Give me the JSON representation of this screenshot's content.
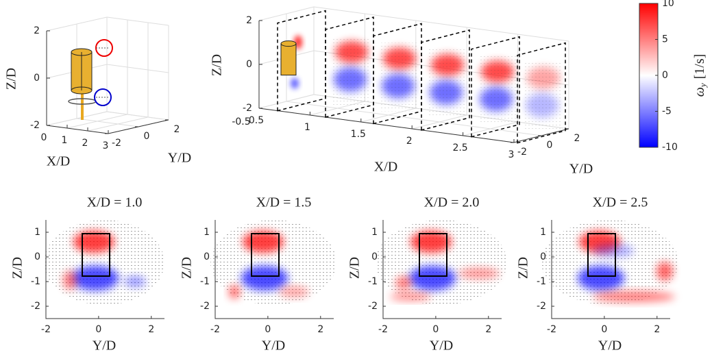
{
  "chart_data": [
    {
      "type": "axes3d",
      "zlabel": "Z/D",
      "xlabel": "X/D",
      "ylabel": "Y/D",
      "xlim": [
        0,
        3
      ],
      "ylim": [
        -2,
        2
      ],
      "zlim": [
        -2,
        2
      ],
      "xticks": [
        0,
        1,
        2,
        3
      ],
      "yticks": [
        -2,
        0,
        2
      ],
      "zticks": [
        -2,
        0,
        2
      ],
      "grid": true
    },
    {
      "type": "slices3d",
      "zlabel": "Z/D",
      "xlabel": "X/D",
      "ylabel": "Y/D",
      "xlim": [
        0.5,
        3
      ],
      "ylim": [
        -2,
        2
      ],
      "zlim": [
        -2,
        2
      ],
      "xticks": [
        0.5,
        1,
        1.5,
        2,
        2.5,
        3
      ],
      "yticks": [
        -2,
        0,
        2
      ],
      "zticks": [
        -2,
        0,
        2
      ],
      "annotations": [
        "-0.5"
      ],
      "grid": true
    },
    {
      "type": "colorbar",
      "symbol": "ω",
      "subscript": "y",
      "unit": "[1/s]",
      "clim": [
        -10,
        10
      ],
      "ticks": [
        10,
        5,
        0,
        -5,
        -10
      ],
      "colors": [
        "#0000ff",
        "#ffffff",
        "#ff0000"
      ]
    },
    {
      "type": "heatmap",
      "title": "X/D = 1.0",
      "xlabel": "Y/D",
      "ylabel": "Z/D",
      "xlim": [
        -2,
        2.5
      ],
      "ylim": [
        -2.5,
        1.5
      ],
      "xticks": [
        -2,
        0,
        2
      ],
      "yticks": [
        -2,
        -1,
        0,
        1
      ]
    },
    {
      "type": "heatmap",
      "title": "X/D = 1.5",
      "xlabel": "Y/D",
      "ylabel": "Z/D",
      "xlim": [
        -2,
        2.5
      ],
      "ylim": [
        -2.5,
        1.5
      ],
      "xticks": [
        -2,
        0,
        2
      ],
      "yticks": [
        -2,
        -1,
        0,
        1
      ]
    },
    {
      "type": "heatmap",
      "title": "X/D = 2.0",
      "xlabel": "Y/D",
      "ylabel": "Z/D",
      "xlim": [
        -2,
        2.5
      ],
      "ylim": [
        -2.5,
        1.5
      ],
      "xticks": [
        -2,
        0,
        2
      ],
      "yticks": [
        -2,
        -1,
        0,
        1
      ]
    },
    {
      "type": "heatmap",
      "title": "X/D = 2.5",
      "xlabel": "Y/D",
      "ylabel": "Z/D",
      "xlim": [
        -2,
        2.5
      ],
      "ylim": [
        -2.5,
        1.5
      ],
      "xticks": [
        -2,
        0,
        2
      ],
      "yticks": [
        -2,
        -1,
        0,
        1
      ]
    }
  ]
}
